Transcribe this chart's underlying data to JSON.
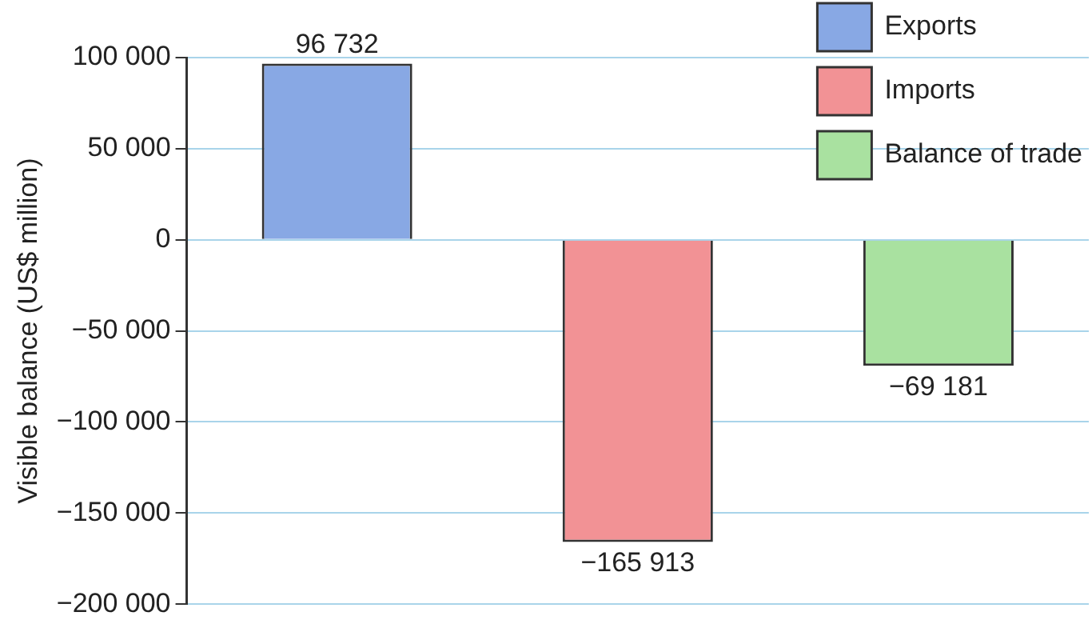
{
  "chart_data": {
    "type": "bar",
    "ylabel": "Visible balance (US$ million)",
    "categories": [
      null,
      null,
      null
    ],
    "series": [
      {
        "name": "Exports",
        "color": "#88a8e4",
        "values": [
          96732,
          null,
          null
        ],
        "value_labels": [
          "96 732",
          null,
          null
        ]
      },
      {
        "name": "Imports",
        "color": "#f29295",
        "values": [
          null,
          -165913,
          null
        ],
        "value_labels": [
          null,
          "−165 913",
          null
        ]
      },
      {
        "name": "Balance of trade",
        "color": "#a9e1a0",
        "values": [
          null,
          null,
          -69181
        ],
        "value_labels": [
          null,
          null,
          "−69 181"
        ]
      }
    ],
    "ylim": [
      -200000,
      100000
    ],
    "yticks": [
      {
        "value": 100000,
        "label": "100 000"
      },
      {
        "value": 50000,
        "label": "50 000"
      },
      0,
      {
        "value": -50000,
        "label": "−50 000"
      },
      {
        "value": -100000,
        "label": "−100 000"
      },
      {
        "value": -150000,
        "label": "−150 000"
      },
      {
        "value": -200000,
        "label": "−200 000"
      }
    ],
    "grid": "y",
    "legend": "top right"
  }
}
